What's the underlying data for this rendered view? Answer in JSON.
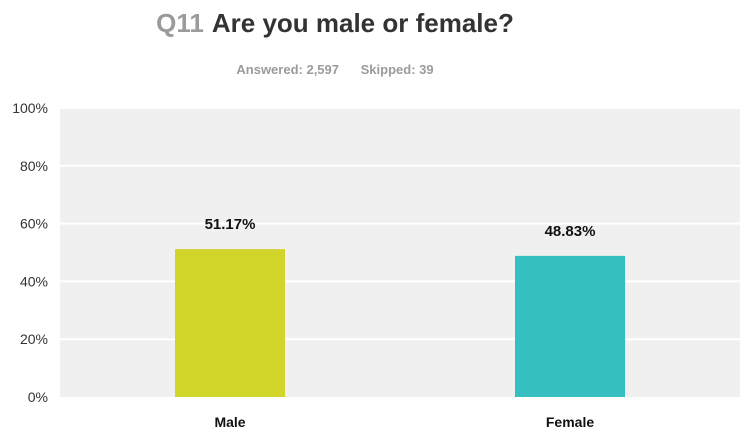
{
  "question": {
    "number": "Q11",
    "text": "Are you male or female?",
    "answered": "Answered: 2,597",
    "skipped": "Skipped: 39"
  },
  "colors": {
    "plot_background": "#f0f0f0",
    "gridline": "#ffffff",
    "axis_text": "#333333",
    "male_bar": "#d1d52a",
    "female_bar": "#35bfc0"
  },
  "chart_data": {
    "type": "bar",
    "title": "Q11 Are you male or female?",
    "categories": [
      "Male",
      "Female"
    ],
    "values": [
      51.17,
      48.83
    ],
    "value_labels": [
      "51.17%",
      "48.83%"
    ],
    "bar_colors": [
      "#d1d52a",
      "#35bfc0"
    ],
    "xlabel": "",
    "ylabel": "",
    "ylim": [
      0,
      100
    ],
    "yticks": [
      0,
      20,
      40,
      60,
      80,
      100
    ],
    "ytick_labels": [
      "0%",
      "20%",
      "40%",
      "60%",
      "80%",
      "100%"
    ],
    "grid": true,
    "legend": "none"
  }
}
